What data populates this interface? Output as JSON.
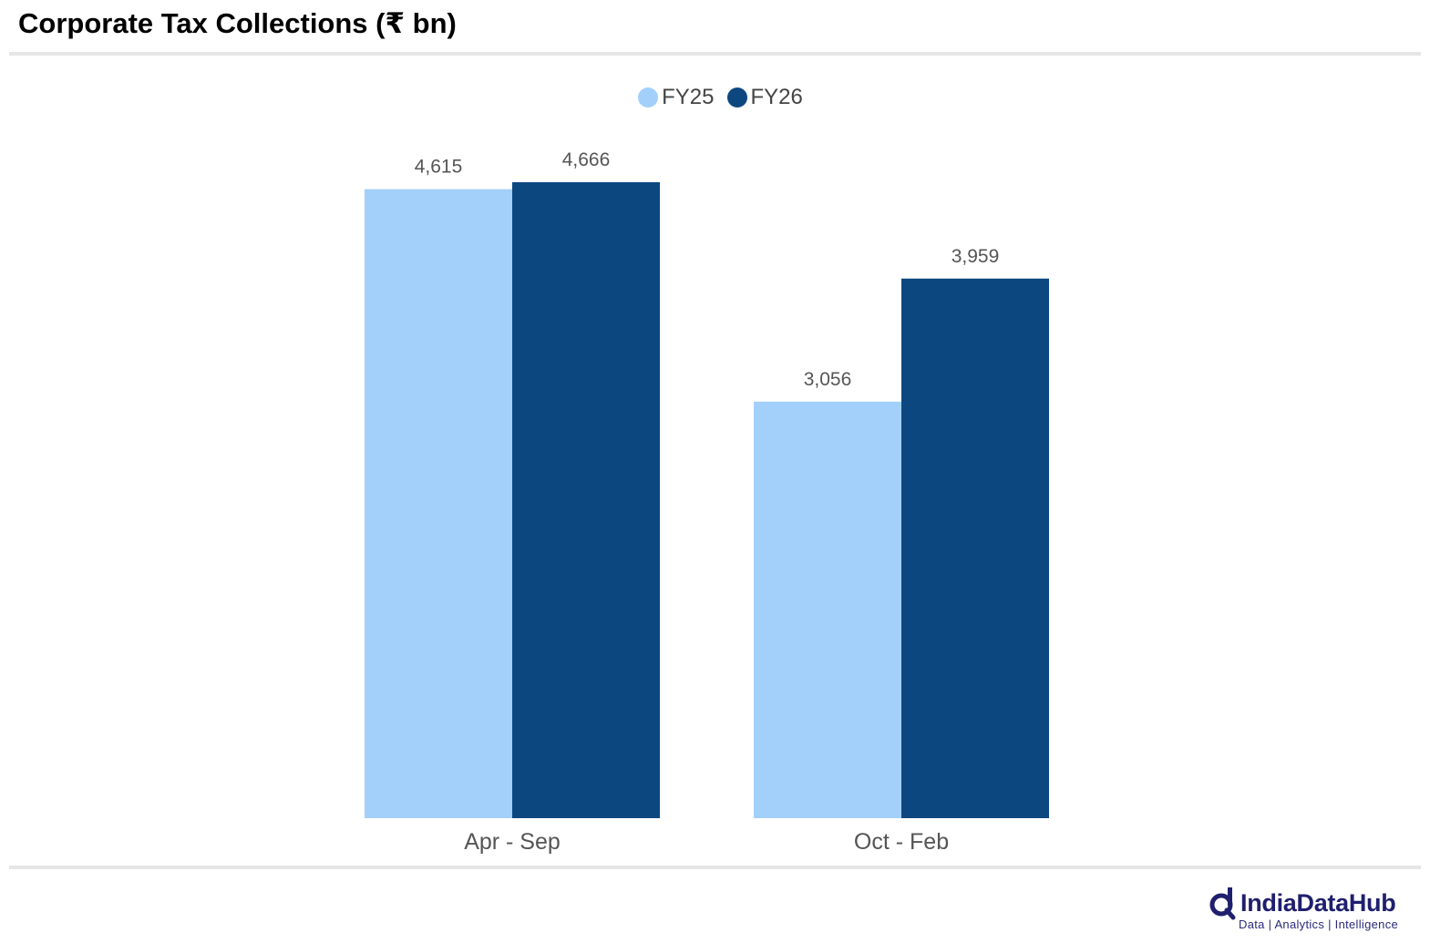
{
  "title": "Corporate Tax Collections (₹ bn)",
  "colors": {
    "fy25": "#a3d0fb",
    "fy26": "#0c4780"
  },
  "legend": [
    {
      "label": "FY25",
      "color": "#a3d0fb"
    },
    {
      "label": "FY26",
      "color": "#0c4780"
    }
  ],
  "chart_data": {
    "type": "bar",
    "categories": [
      "Apr - Sep",
      "Oct - Feb"
    ],
    "series": [
      {
        "name": "FY25",
        "values": [
          4615,
          3056
        ],
        "labels": [
          "4,615",
          "3,056"
        ]
      },
      {
        "name": "FY26",
        "values": [
          4666,
          3959
        ],
        "labels": [
          "4,666",
          "3,959"
        ]
      }
    ],
    "ylim": [
      0,
      5000
    ],
    "grid": false,
    "legend_position": "top-center",
    "xlabel": "",
    "ylabel": ""
  },
  "brand": {
    "name": "IndiaDataHub",
    "tagline": "Data | Analytics | Intelligence"
  }
}
